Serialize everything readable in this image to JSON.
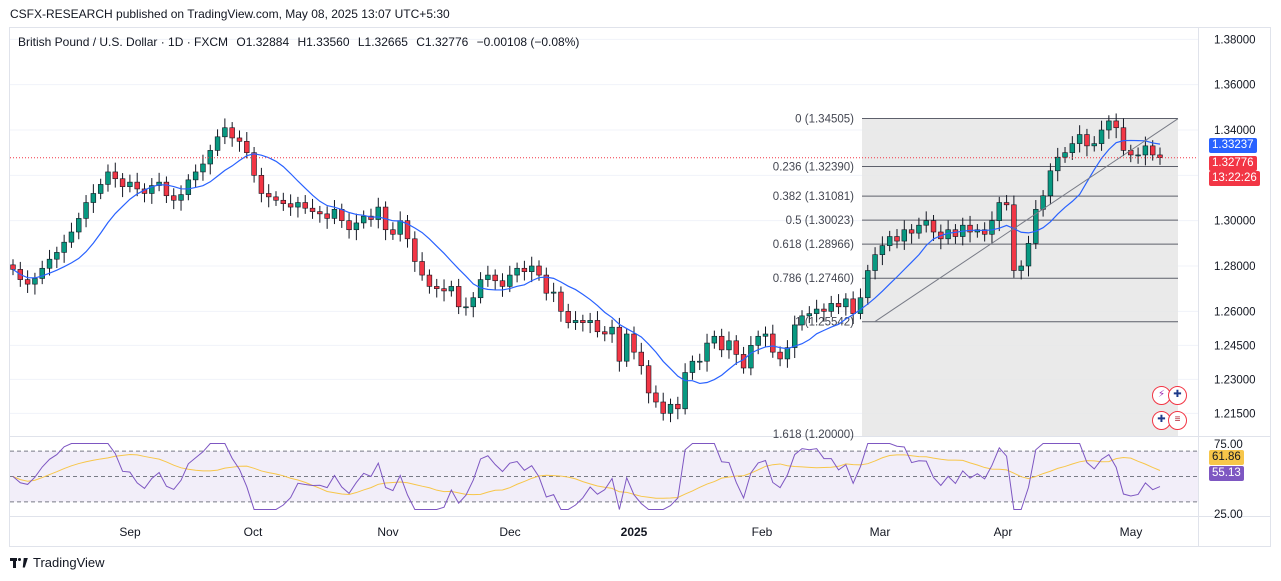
{
  "header": {
    "publish_line": "CSFX-RESEARCH published on TradingView.com, May 08, 2025 13:07 UTC+5:30"
  },
  "legend": {
    "symbol": "British Pound / U.S. Dollar · 1D · FXCM",
    "open": "O1.32884",
    "high": "H1.33560",
    "low": "L1.32665",
    "close": "C1.32776",
    "change": "−0.00108 (−0.08%)"
  },
  "price_axis": {
    "ticks": [
      "1.38000",
      "1.36000",
      "1.34000",
      "1.32000",
      "1.30000",
      "1.28000",
      "1.26000",
      "1.24500",
      "1.23000",
      "1.21500"
    ],
    "ma_tag": "1.33237",
    "last_price_tag": "1.32776",
    "countdown_tag": "13:22:26"
  },
  "time_axis": {
    "labels": [
      "Sep",
      "Oct",
      "Nov",
      "Dec",
      "2025",
      "Feb",
      "Mar",
      "Apr",
      "May"
    ]
  },
  "fibonacci": {
    "levels": [
      {
        "label": "0 (1.34505)",
        "value": 1.34505
      },
      {
        "label": "0.236 (1.32390)",
        "value": 1.3239
      },
      {
        "label": "0.382 (1.31081)",
        "value": 1.31081
      },
      {
        "label": "0.5 (1.30023)",
        "value": 1.30023
      },
      {
        "label": "0.618 (1.28966)",
        "value": 1.28966
      },
      {
        "label": "0.786 (1.27460)",
        "value": 1.2746
      },
      {
        "label": "1 (1.25542)",
        "value": 1.25542
      },
      {
        "label": "1.618 (1.20000)",
        "value": 1.2
      }
    ]
  },
  "rsi": {
    "axis_ticks": [
      "75.00",
      "25.00"
    ],
    "rsi_tag": "55.13",
    "ma_tag": "61.86"
  },
  "colors": {
    "up": "#089981",
    "down": "#f23645",
    "ma_line": "#2962ff",
    "rsi_line": "#7e57c2",
    "rsi_ma": "#f7c64a",
    "fib_band": "#e6e6e6"
  },
  "chart_data": {
    "type": "candlestick",
    "timeframe": "1D",
    "ohlc_close_series": [
      1.2785,
      1.274,
      1.272,
      1.2745,
      1.279,
      1.283,
      1.286,
      1.2905,
      1.295,
      1.301,
      1.308,
      1.312,
      1.316,
      1.3215,
      1.3185,
      1.315,
      1.317,
      1.314,
      1.312,
      1.3155,
      1.317,
      1.311,
      1.309,
      1.3115,
      1.318,
      1.3215,
      1.325,
      1.331,
      1.337,
      1.341,
      1.3365,
      1.335,
      1.33,
      1.32,
      1.312,
      1.3105,
      1.309,
      1.3075,
      1.306,
      1.308,
      1.3055,
      1.304,
      1.303,
      1.301,
      1.305,
      1.3,
      1.296,
      1.299,
      1.302,
      1.3005,
      1.306,
      1.296,
      1.294,
      1.3,
      1.292,
      1.282,
      1.276,
      1.271,
      1.27,
      1.269,
      1.271,
      1.262,
      1.262,
      1.266,
      1.274,
      1.276,
      1.2735,
      1.271,
      1.276,
      1.279,
      1.2775,
      1.28,
      1.276,
      1.268,
      1.2685,
      1.26,
      1.255,
      1.256,
      1.255,
      1.256,
      1.251,
      1.25,
      1.253,
      1.238,
      1.25,
      1.242,
      1.236,
      1.224,
      1.22,
      1.215,
      1.219,
      1.217,
      1.233,
      1.238,
      1.238,
      1.246,
      1.249,
      1.243,
      1.247,
      1.241,
      1.235,
      1.245,
      1.249,
      1.25,
      1.242,
      1.239,
      1.244,
      1.254,
      1.258,
      1.259,
      1.261,
      1.26,
      1.2635,
      1.262,
      1.2655,
      1.259,
      1.266,
      1.278,
      1.285,
      1.289,
      1.293,
      1.291,
      1.296,
      1.2945,
      1.298,
      1.3,
      1.295,
      1.292,
      1.296,
      1.293,
      1.298,
      1.295,
      1.296,
      1.294,
      1.3,
      1.308,
      1.307,
      1.278,
      1.28,
      1.29,
      1.305,
      1.311,
      1.322,
      1.328,
      1.33,
      1.334,
      1.338,
      1.333,
      1.334,
      1.34,
      1.344,
      1.341,
      1.331,
      1.329,
      1.329,
      1.333,
      1.329,
      1.3278
    ],
    "x_axis_months": [
      "Sep",
      "Oct",
      "Nov",
      "Dec",
      "2025",
      "Feb",
      "Mar",
      "Apr",
      "May"
    ],
    "y_range": [
      1.205,
      1.385
    ],
    "ma_last": 1.33237,
    "last_close": 1.32776,
    "rsi_last": 55.13,
    "rsi_ma_last": 61.86,
    "rsi_bands": [
      70,
      50,
      30
    ],
    "rsi_axis": [
      25,
      75
    ]
  }
}
